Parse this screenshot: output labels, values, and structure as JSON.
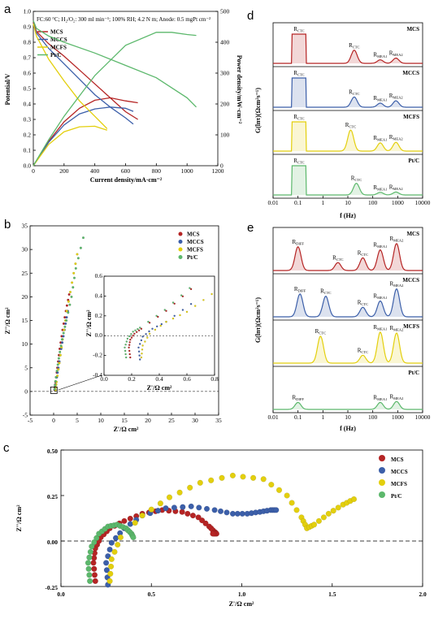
{
  "colors": {
    "MCS": "#b52424",
    "MCCS": "#3c5fa9",
    "MCFS": "#e3cf0d",
    "PtC": "#5cb86c"
  },
  "chart_data": [
    {
      "panel": "a",
      "type": "line",
      "annotation": "FC:60 °C; H₂/O₂: 300 ml min⁻¹; 100% RH; 4.2 N m; Anode: 0.5 mgPt cm⁻²",
      "xlabel": "Current density/mA·cm⁻²",
      "ylabel_left": "Potential/V",
      "ylabel_right": "Power density/mW·cm⁻²",
      "xlim": [
        0,
        1200
      ],
      "ylim_left": [
        0.0,
        1.0
      ],
      "ylim_right": [
        0,
        500
      ],
      "xticks": [
        "0",
        "200",
        "400",
        "600",
        "800",
        "1000",
        "1200"
      ],
      "yticks_left": [
        "0.0",
        "0.1",
        "0.2",
        "0.3",
        "0.4",
        "0.5",
        "0.6",
        "0.7",
        "0.8",
        "0.9",
        "1.0"
      ],
      "yticks_right": [
        "0",
        "100",
        "200",
        "300",
        "400",
        "500"
      ],
      "series": [
        {
          "name": "MCS",
          "color": "#b52424",
          "polarization": {
            "x": [
              0,
              20,
              100,
              200,
              300,
              400,
              500,
              600,
              680
            ],
            "y": [
              0.93,
              0.87,
              0.79,
              0.71,
              0.62,
              0.53,
              0.44,
              0.35,
              0.3
            ]
          },
          "power": {
            "x": [
              0,
              100,
              200,
              300,
              400,
              500,
              600,
              680
            ],
            "y": [
              0,
              79,
              142,
              186,
              212,
              220,
              210,
              204
            ]
          }
        },
        {
          "name": "MCCS",
          "color": "#3c5fa9",
          "polarization": {
            "x": [
              0,
              20,
              100,
              200,
              300,
              400,
              500,
              600,
              650
            ],
            "y": [
              0.92,
              0.86,
              0.76,
              0.66,
              0.56,
              0.46,
              0.38,
              0.31,
              0.27
            ]
          },
          "power": {
            "x": [
              0,
              100,
              200,
              300,
              400,
              500,
              600,
              650
            ],
            "y": [
              0,
              76,
              132,
              168,
              184,
              190,
              186,
              176
            ]
          }
        },
        {
          "name": "MCFS",
          "color": "#e3cf0d",
          "polarization": {
            "x": [
              0,
              20,
              100,
              200,
              300,
              400,
              480
            ],
            "y": [
              0.92,
              0.84,
              0.69,
              0.55,
              0.42,
              0.32,
              0.24
            ]
          },
          "power": {
            "x": [
              0,
              100,
              200,
              300,
              400,
              480
            ],
            "y": [
              0,
              69,
              110,
              126,
              128,
              115
            ]
          }
        },
        {
          "name": "Pt/C",
          "color": "#5cb86c",
          "polarization": {
            "x": [
              0,
              20,
              100,
              200,
              400,
              600,
              800,
              1000,
              1060
            ],
            "y": [
              0.94,
              0.89,
              0.84,
              0.8,
              0.73,
              0.65,
              0.57,
              0.44,
              0.38
            ]
          },
          "power": {
            "x": [
              0,
              100,
              200,
              400,
              600,
              800,
              900,
              1000,
              1060
            ],
            "y": [
              0,
              84,
              160,
              292,
              390,
              432,
              432,
              425,
              422
            ]
          }
        }
      ]
    },
    {
      "panel": "b",
      "type": "scatter",
      "xlabel": "Z'/Ω cm²",
      "ylabel": "Z''/Ω cm²",
      "xlim": [
        -5,
        35
      ],
      "ylim": [
        -5,
        35
      ],
      "xticks": [
        "-5",
        "0",
        "5",
        "10",
        "15",
        "20",
        "25",
        "30",
        "35"
      ],
      "yticks": [
        "-5",
        "0",
        "5",
        "10",
        "15",
        "20",
        "25",
        "30",
        "35"
      ],
      "legend": [
        "MCS",
        "MCCS",
        "MCFS",
        "Pt/C"
      ],
      "series": [
        {
          "name": "MCS",
          "x": [
            0.2,
            0.4,
            0.8,
            1.3,
            1.9,
            2.6,
            3.3
          ],
          "y": [
            0.3,
            2,
            5,
            9,
            13,
            17,
            20.5
          ]
        },
        {
          "name": "MCCS",
          "x": [
            0.3,
            0.5,
            1.0,
            1.6,
            2.3,
            3.0
          ],
          "y": [
            0.3,
            2,
            5,
            9,
            13,
            17
          ]
        },
        {
          "name": "MCFS",
          "x": [
            0.4,
            0.6,
            1.2,
            1.9,
            2.8,
            3.9,
            5.0
          ],
          "y": [
            0.3,
            2,
            6,
            11,
            17,
            23,
            29
          ]
        },
        {
          "name": "Pt/C",
          "x": [
            0.2,
            0.5,
            1.1,
            1.8,
            2.7,
            3.8,
            4.7,
            6.3
          ],
          "y": [
            0.5,
            3,
            7,
            11,
            15,
            20,
            26,
            32.5
          ]
        }
      ],
      "inset": {
        "xlabel": "Z'/Ω cm²",
        "ylabel": "Z''/Ω cm²",
        "xlim": [
          0.0,
          0.8
        ],
        "ylim": [
          -0.4,
          0.6
        ],
        "xticks": [
          "0.0",
          "0.2",
          "0.4",
          "0.6",
          "0.8"
        ],
        "yticks": [
          "-0.4",
          "-0.2",
          "0.0",
          "0.2",
          "0.4",
          "0.6"
        ]
      }
    },
    {
      "panel": "c",
      "type": "scatter",
      "xlabel": "Z'/Ω cm²",
      "ylabel": "Z''/Ω cm²",
      "xlim": [
        0.0,
        2.0
      ],
      "ylim": [
        -0.25,
        0.5
      ],
      "xticks": [
        "0.0",
        "0.5",
        "1.0",
        "1.5",
        "2.0"
      ],
      "yticks": [
        "-0.25",
        "0.00",
        "0.25",
        "0.50"
      ],
      "legend": [
        "MCS",
        "MCCS",
        "MCFS",
        "Pt/C"
      ],
      "series": [
        {
          "name": "MCS",
          "x": [
            0.19,
            0.18,
            0.19,
            0.22,
            0.27,
            0.35,
            0.45,
            0.56,
            0.67,
            0.76,
            0.82,
            0.85,
            0.86,
            0.84
          ],
          "y": [
            -0.22,
            -0.12,
            -0.04,
            0.02,
            0.07,
            0.11,
            0.15,
            0.17,
            0.16,
            0.13,
            0.08,
            0.05,
            0.04,
            0.04
          ]
        },
        {
          "name": "MCCS",
          "x": [
            0.26,
            0.25,
            0.28,
            0.35,
            0.45,
            0.58,
            0.72,
            0.85,
            0.95,
            1.03,
            1.1,
            1.16,
            1.19
          ],
          "y": [
            -0.24,
            -0.12,
            -0.01,
            0.07,
            0.14,
            0.18,
            0.19,
            0.17,
            0.15,
            0.15,
            0.16,
            0.17,
            0.17
          ]
        },
        {
          "name": "MCFS",
          "x": [
            0.27,
            0.28,
            0.33,
            0.45,
            0.6,
            0.77,
            0.95,
            1.12,
            1.25,
            1.33,
            1.36,
            1.4,
            1.48,
            1.56,
            1.62
          ],
          "y": [
            -0.22,
            -0.1,
            0.02,
            0.14,
            0.24,
            0.32,
            0.36,
            0.34,
            0.25,
            0.13,
            0.07,
            0.09,
            0.15,
            0.2,
            0.23
          ]
        },
        {
          "name": "Pt/C",
          "x": [
            0.16,
            0.15,
            0.17,
            0.21,
            0.26,
            0.31,
            0.36,
            0.39,
            0.4
          ],
          "y": [
            -0.22,
            -0.12,
            -0.03,
            0.04,
            0.08,
            0.09,
            0.07,
            0.04,
            0.02
          ]
        }
      ]
    },
    {
      "panel": "d",
      "type": "line",
      "xlabel": "f (Hz)",
      "ylabel": "G(lnτ)(Ωcm²s⁻¹)",
      "xscale": "log",
      "xlim": [
        0.01,
        10000
      ],
      "xticks": [
        "0.01",
        "0.1",
        "1",
        "10",
        "100",
        "1000",
        "10000"
      ],
      "series": [
        {
          "name": "MCS",
          "peaks": [
            {
              "label": "R_ctc",
              "center": 0.11,
              "height": 1.0,
              "flat": true
            },
            {
              "label": "R_ctc",
              "center": 18,
              "height": 0.45
            },
            {
              "label": "R_MEA1",
              "center": 200,
              "height": 0.12
            },
            {
              "label": "R_MEA2",
              "center": 850,
              "height": 0.18
            }
          ]
        },
        {
          "name": "MCCS",
          "peaks": [
            {
              "label": "R_ctc",
              "center": 0.11,
              "height": 1.0,
              "flat": true
            },
            {
              "label": "R_ctc",
              "center": 18,
              "height": 0.35
            },
            {
              "label": "R_MEA1",
              "center": 200,
              "height": 0.14
            },
            {
              "label": "R_MEA2",
              "center": 850,
              "height": 0.22
            }
          ]
        },
        {
          "name": "MCFS",
          "peaks": [
            {
              "label": "R_ctc",
              "center": 0.11,
              "height": 1.0,
              "flat": true
            },
            {
              "label": "R_ctc",
              "center": 13,
              "height": 0.72
            },
            {
              "label": "R_MEA1",
              "center": 200,
              "height": 0.28
            },
            {
              "label": "R_MEA2",
              "center": 850,
              "height": 0.3
            }
          ]
        },
        {
          "name": "Pt/C",
          "peaks": [
            {
              "label": "R_ctc",
              "center": 0.11,
              "height": 1.0,
              "flat": true
            },
            {
              "label": "R_ctc",
              "center": 22,
              "height": 0.4
            },
            {
              "label": "R_MEA1",
              "center": 200,
              "height": 0.09
            },
            {
              "label": "R_MEA2",
              "center": 850,
              "height": 0.1
            }
          ]
        }
      ]
    },
    {
      "panel": "e",
      "type": "line",
      "xlabel": "f (Hz)",
      "ylabel": "G(lnτ)(Ωcm²s⁻¹)",
      "xscale": "log",
      "xlim": [
        0.01,
        10000
      ],
      "xticks": [
        "0.01",
        "0.1",
        "1",
        "10",
        "100",
        "1000",
        "10000"
      ],
      "series": [
        {
          "name": "MCS",
          "peaks": [
            {
              "label": "R_diff",
              "center": 0.1,
              "height": 0.75
            },
            {
              "label": "R_ctc",
              "center": 4,
              "height": 0.25
            },
            {
              "label": "R_ctc",
              "center": 40,
              "height": 0.4
            },
            {
              "label": "R_MEA1",
              "center": 200,
              "height": 0.65
            },
            {
              "label": "R_MEA2",
              "center": 900,
              "height": 0.85
            }
          ]
        },
        {
          "name": "MCCS",
          "peaks": [
            {
              "label": "R_diff",
              "center": 0.12,
              "height": 0.72
            },
            {
              "label": "R_ctc",
              "center": 1.3,
              "height": 0.65
            },
            {
              "label": "R_ctc",
              "center": 40,
              "height": 0.3
            },
            {
              "label": "R_MEA1",
              "center": 200,
              "height": 0.5
            },
            {
              "label": "R_MEA2",
              "center": 900,
              "height": 0.88
            }
          ]
        },
        {
          "name": "MCFS",
          "peaks": [
            {
              "label": "R_ctc",
              "center": 0.8,
              "height": 0.85
            },
            {
              "label": "R_ctc",
              "center": 40,
              "height": 0.25
            },
            {
              "label": "R_MEA1",
              "center": 200,
              "height": 0.98
            },
            {
              "label": "R_MEA2",
              "center": 900,
              "height": 0.95
            }
          ]
        },
        {
          "name": "Pt/C",
          "peaks": [
            {
              "label": "R_diff",
              "center": 0.1,
              "height": 0.22
            },
            {
              "label": "R_MEA1",
              "center": 200,
              "height": 0.22
            },
            {
              "label": "R_MEA2",
              "center": 900,
              "height": 0.25
            }
          ]
        }
      ]
    }
  ]
}
